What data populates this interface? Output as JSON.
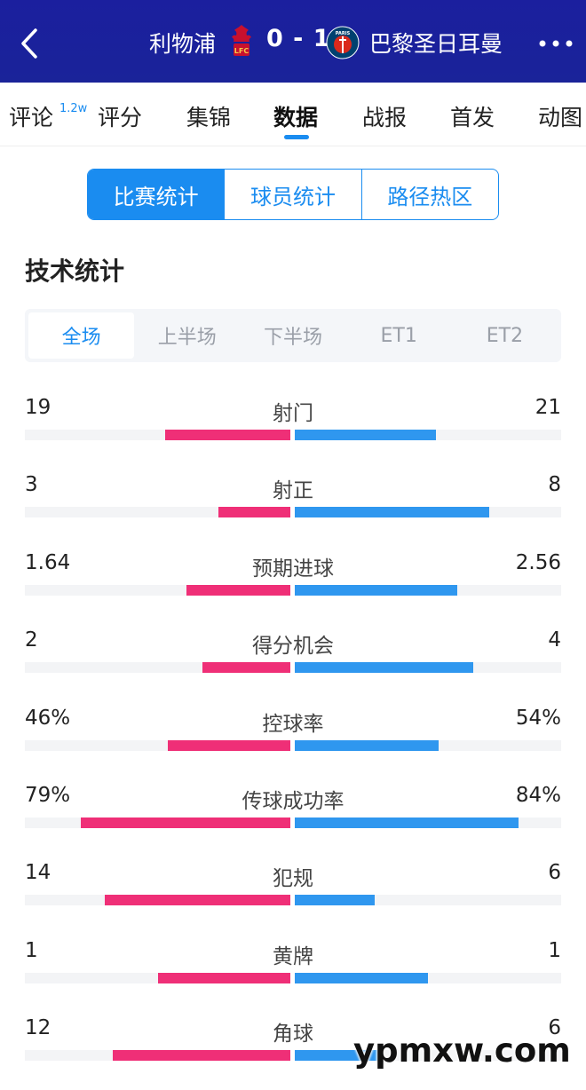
{
  "header": {
    "home_team": "利物浦",
    "score": "0 - 1",
    "away_team": "巴黎圣日耳曼",
    "home_crest_text": "LFC",
    "away_crest_text": "PARIS",
    "back_icon": "back-arrow-icon",
    "more_icon": "more-dots-icon",
    "colors": {
      "background": "#1a1f9c",
      "home_crest": "#c8102e",
      "away_crest": "#004170"
    }
  },
  "tabs": {
    "items": [
      {
        "label": "评论",
        "badge": "1.2w"
      },
      {
        "label": "评分"
      },
      {
        "label": "集锦"
      },
      {
        "label": "数据",
        "active": true
      },
      {
        "label": "战报"
      },
      {
        "label": "首发"
      },
      {
        "label": "动图"
      }
    ]
  },
  "segments": {
    "items": [
      "比赛统计",
      "球员统计",
      "路径热区"
    ],
    "active": "比赛统计"
  },
  "section_title": "技术统计",
  "periods": {
    "items": [
      "全场",
      "上半场",
      "下半场",
      "ET1",
      "ET2"
    ],
    "active": "全场"
  },
  "stats": [
    {
      "label": "射门",
      "home": "19",
      "away": "21",
      "home_fill": 0.47,
      "away_fill": 0.53
    },
    {
      "label": "射正",
      "home": "3",
      "away": "8",
      "home_fill": 0.27,
      "away_fill": 0.73
    },
    {
      "label": "预期进球",
      "home": "1.64",
      "away": "2.56",
      "home_fill": 0.39,
      "away_fill": 0.61
    },
    {
      "label": "得分机会",
      "home": "2",
      "away": "4",
      "home_fill": 0.33,
      "away_fill": 0.67
    },
    {
      "label": "控球率",
      "home": "46%",
      "away": "54%",
      "home_fill": 0.46,
      "away_fill": 0.54
    },
    {
      "label": "传球成功率",
      "home": "79%",
      "away": "84%",
      "home_fill": 0.79,
      "away_fill": 0.84
    },
    {
      "label": "犯规",
      "home": "14",
      "away": "6",
      "home_fill": 0.7,
      "away_fill": 0.3
    },
    {
      "label": "黄牌",
      "home": "1",
      "away": "1",
      "home_fill": 0.5,
      "away_fill": 0.5
    },
    {
      "label": "角球",
      "home": "12",
      "away": "6",
      "home_fill": 0.67,
      "away_fill": 0.33
    }
  ],
  "colors": {
    "accent": "#1a8cf0",
    "home_bar": "#ef2f77",
    "away_bar": "#2f97ef"
  },
  "watermark": "ypmxw.com"
}
